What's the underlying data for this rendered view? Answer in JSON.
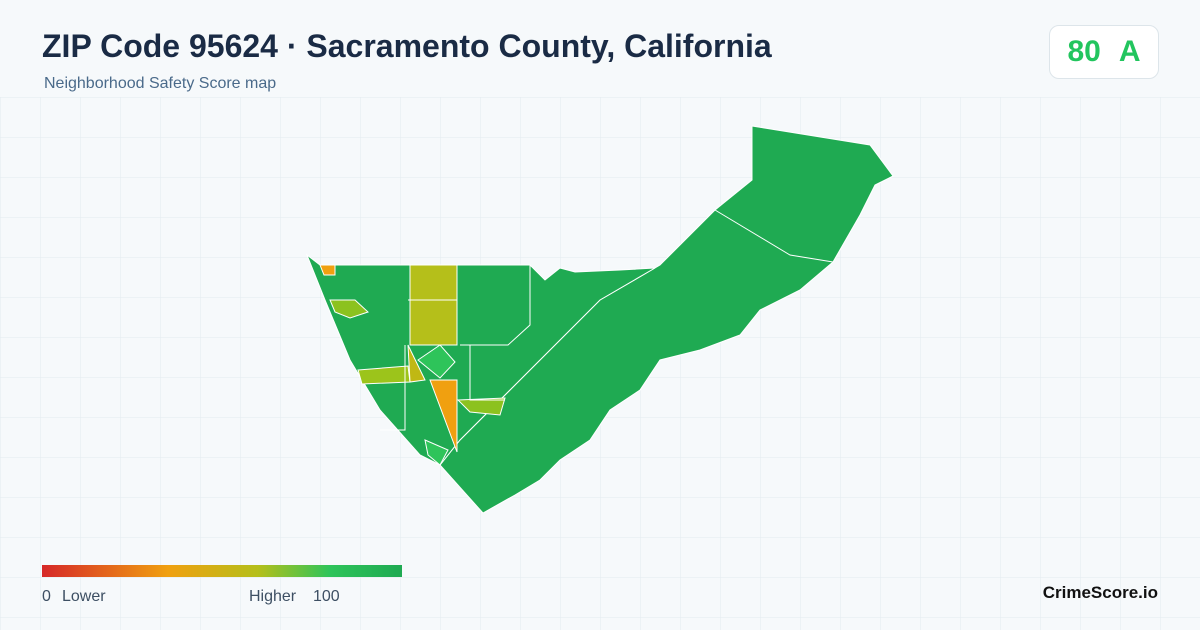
{
  "header": {
    "title": "ZIP Code 95624 · Sacramento County, California",
    "subtitle": "Neighborhood Safety Score map"
  },
  "score": {
    "value": "80",
    "grade": "A"
  },
  "legend": {
    "min": "0",
    "min_label": "Lower",
    "max_label": "Higher",
    "max": "100"
  },
  "brand": "CrimeScore.io"
}
